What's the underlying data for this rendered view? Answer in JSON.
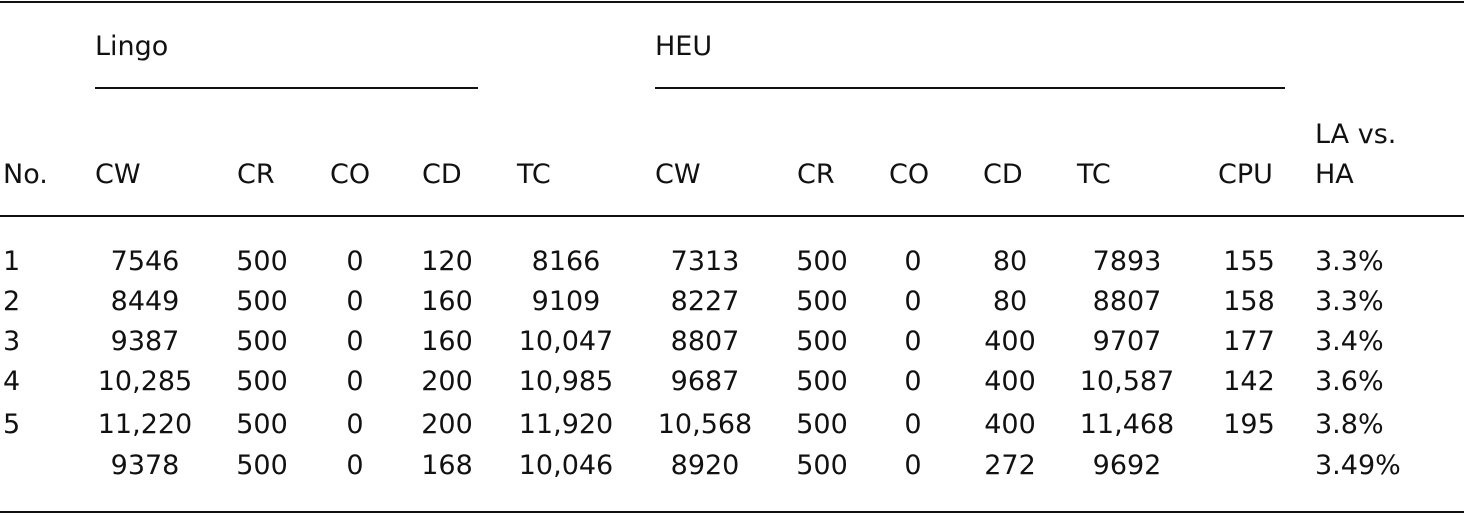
{
  "table": {
    "groups": [
      "Lingo",
      "HEU"
    ],
    "columns": [
      "No.",
      "CW",
      "CR",
      "CO",
      "CD",
      "TC",
      "CW",
      "CR",
      "CO",
      "CD",
      "TC",
      "CPU",
      "LA vs. HA"
    ],
    "rows": [
      [
        "1",
        "7546",
        "500",
        "0",
        "120",
        "8166",
        "7313",
        "500",
        "0",
        "80",
        "7893",
        "155",
        "3.3%"
      ],
      [
        "2",
        "8449",
        "500",
        "0",
        "160",
        "9109",
        "8227",
        "500",
        "0",
        "80",
        "8807",
        "158",
        "3.3%"
      ],
      [
        "3",
        "9387",
        "500",
        "0",
        "160",
        "10,047",
        "8807",
        "500",
        "0",
        "400",
        "9707",
        "177",
        "3.4%"
      ],
      [
        "4",
        "10,285",
        "500",
        "0",
        "200",
        "10,985",
        "9687",
        "500",
        "0",
        "400",
        "10,587",
        "142",
        "3.6%"
      ],
      [
        "5",
        "11,220",
        "500",
        "0",
        "200",
        "11,920",
        "10,568",
        "500",
        "0",
        "400",
        "11,468",
        "195",
        "3.8%"
      ],
      [
        null,
        "9378",
        "500",
        "0",
        "168",
        "10,046",
        "8920",
        "500",
        "0",
        "272",
        "9692",
        null,
        "3.49%"
      ]
    ]
  }
}
